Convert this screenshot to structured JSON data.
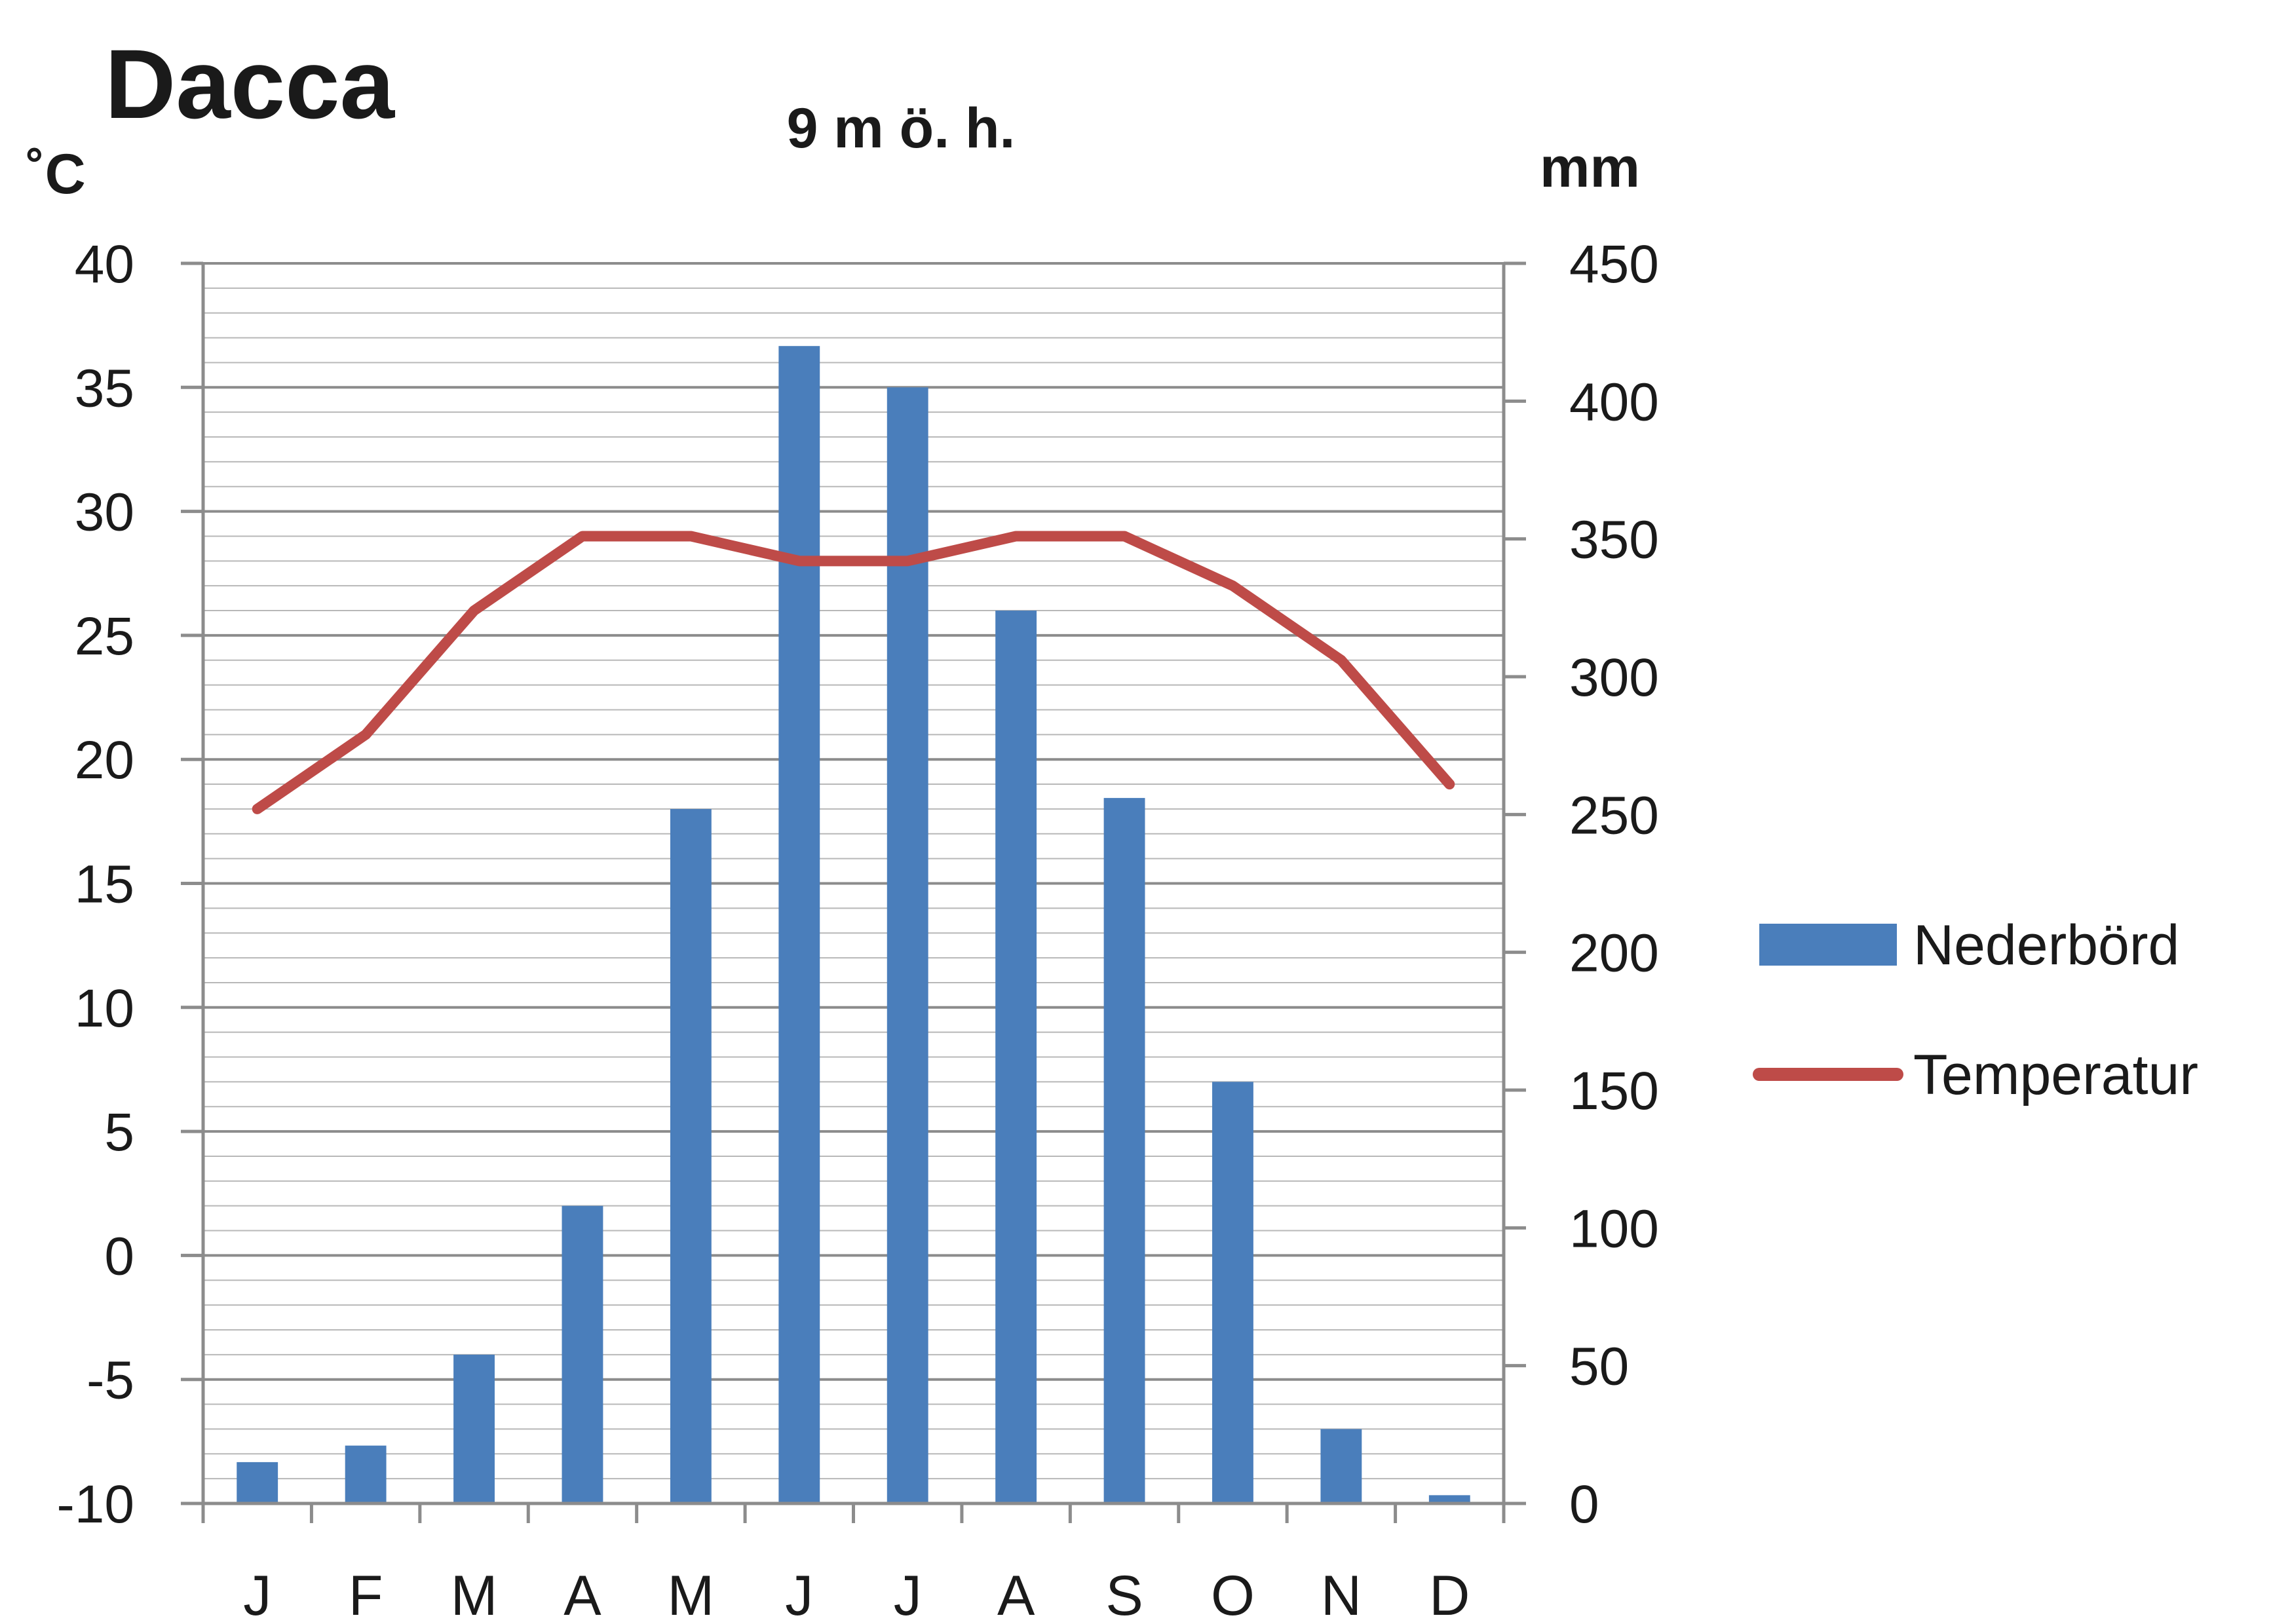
{
  "chart_data": {
    "type": "bar",
    "title": "Dacca",
    "subtitle": "9 m ö. h.",
    "left_unit": "˚C",
    "right_unit": "mm",
    "categories": [
      "J",
      "F",
      "M",
      "A",
      "M",
      "J",
      "J",
      "A",
      "S",
      "O",
      "N",
      "D"
    ],
    "y_left": {
      "min": -10,
      "max": 40,
      "ticks": [
        -10,
        -5,
        0,
        5,
        10,
        15,
        20,
        25,
        30,
        35,
        40
      ]
    },
    "y_right": {
      "min": 0,
      "max": 450,
      "ticks": [
        0,
        50,
        100,
        150,
        200,
        250,
        300,
        350,
        400,
        450
      ]
    },
    "series": [
      {
        "name": "Nederbörd",
        "kind": "bar",
        "axis": "right",
        "color": "#4a7ebb",
        "values": [
          15,
          21,
          54,
          108,
          252,
          420,
          405,
          324,
          256,
          153,
          27,
          3
        ]
      },
      {
        "name": "Temperatur",
        "kind": "line",
        "axis": "left",
        "color": "#be4b48",
        "values": [
          18,
          21,
          26,
          29,
          29,
          28,
          28,
          29,
          29,
          27,
          24,
          19
        ]
      }
    ],
    "grid": true,
    "legend_position": "right"
  }
}
